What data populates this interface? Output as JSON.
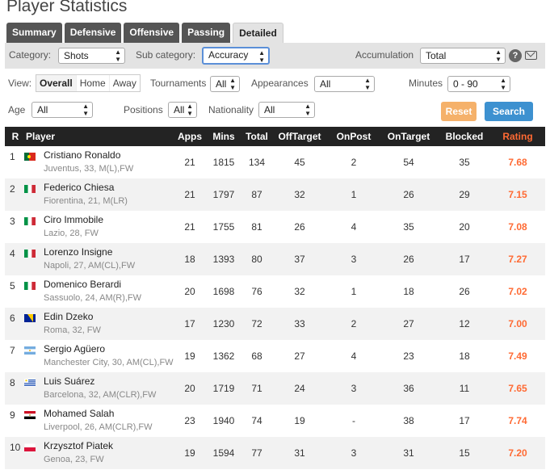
{
  "title": "Player Statistics",
  "tabs": [
    "Summary",
    "Defensive",
    "Offensive",
    "Passing",
    "Detailed"
  ],
  "active_tab": "Detailed",
  "filters": {
    "category_label": "Category:",
    "category_value": "Shots",
    "subcategory_label": "Sub category:",
    "subcategory_value": "Accuracy",
    "accumulation_label": "Accumulation",
    "accumulation_value": "Total",
    "help_icon_text": "?",
    "view_label": "View:",
    "view_options": [
      "Overall",
      "Home",
      "Away"
    ],
    "tournaments_label": "Tournaments",
    "tournaments_value": "All",
    "appearances_label": "Appearances",
    "appearances_value": "All",
    "minutes_label": "Minutes",
    "minutes_value": "0 - 90",
    "age_label": "Age",
    "age_value": "All",
    "positions_label": "Positions",
    "positions_value": "All",
    "nationality_label": "Nationality",
    "nationality_value": "All",
    "reset_label": "Reset",
    "search_label": "Search"
  },
  "table": {
    "headers": [
      "R",
      "Player",
      "Apps",
      "Mins",
      "Total",
      "OffTarget",
      "OnPost",
      "OnTarget",
      "Blocked",
      "Rating"
    ],
    "rows": [
      {
        "r": "1",
        "name": "Cristiano Ronaldo",
        "info": "Juventus, 33, M(L),FW",
        "flag": "portugal",
        "apps": "21",
        "mins": "1815",
        "total": "134",
        "off": "45",
        "post": "2",
        "on": "54",
        "blocked": "35",
        "rating": "7.68"
      },
      {
        "r": "2",
        "name": "Federico Chiesa",
        "info": "Fiorentina, 21, M(LR)",
        "flag": "italy",
        "apps": "21",
        "mins": "1797",
        "total": "87",
        "off": "32",
        "post": "1",
        "on": "26",
        "blocked": "29",
        "rating": "7.15"
      },
      {
        "r": "3",
        "name": "Ciro Immobile",
        "info": "Lazio, 28, FW",
        "flag": "italy",
        "apps": "21",
        "mins": "1755",
        "total": "81",
        "off": "26",
        "post": "4",
        "on": "35",
        "blocked": "20",
        "rating": "7.08"
      },
      {
        "r": "4",
        "name": "Lorenzo Insigne",
        "info": "Napoli, 27, AM(CL),FW",
        "flag": "italy",
        "apps": "18",
        "mins": "1393",
        "total": "80",
        "off": "37",
        "post": "3",
        "on": "26",
        "blocked": "17",
        "rating": "7.27"
      },
      {
        "r": "5",
        "name": "Domenico Berardi",
        "info": "Sassuolo, 24, AM(R),FW",
        "flag": "italy",
        "apps": "20",
        "mins": "1698",
        "total": "76",
        "off": "32",
        "post": "1",
        "on": "18",
        "blocked": "26",
        "rating": "7.02"
      },
      {
        "r": "6",
        "name": "Edin Dzeko",
        "info": "Roma, 32, FW",
        "flag": "bosnia",
        "apps": "17",
        "mins": "1230",
        "total": "72",
        "off": "33",
        "post": "2",
        "on": "27",
        "blocked": "12",
        "rating": "7.00"
      },
      {
        "r": "7",
        "name": "Sergio Agüero",
        "info": "Manchester City, 30, AM(CL),FW",
        "flag": "argentina",
        "apps": "19",
        "mins": "1362",
        "total": "68",
        "off": "27",
        "post": "4",
        "on": "23",
        "blocked": "18",
        "rating": "7.49"
      },
      {
        "r": "8",
        "name": "Luis Suárez",
        "info": "Barcelona, 32, AM(CLR),FW",
        "flag": "uruguay",
        "apps": "20",
        "mins": "1719",
        "total": "71",
        "off": "24",
        "post": "3",
        "on": "36",
        "blocked": "11",
        "rating": "7.65"
      },
      {
        "r": "9",
        "name": "Mohamed Salah",
        "info": "Liverpool, 26, AM(CLR),FW",
        "flag": "egypt",
        "apps": "23",
        "mins": "1940",
        "total": "74",
        "off": "19",
        "post": "-",
        "on": "38",
        "blocked": "17",
        "rating": "7.74"
      },
      {
        "r": "10",
        "name": "Krzysztof Piatek",
        "info": "Genoa, 23, FW",
        "flag": "poland",
        "apps": "19",
        "mins": "1594",
        "total": "77",
        "off": "31",
        "post": "3",
        "on": "31",
        "blocked": "15",
        "rating": "7.20"
      }
    ]
  },
  "colors": {
    "rating": "#ff6a33",
    "header_bg": "#232323",
    "reset": "#f5b16a",
    "search": "#3d91d0"
  }
}
